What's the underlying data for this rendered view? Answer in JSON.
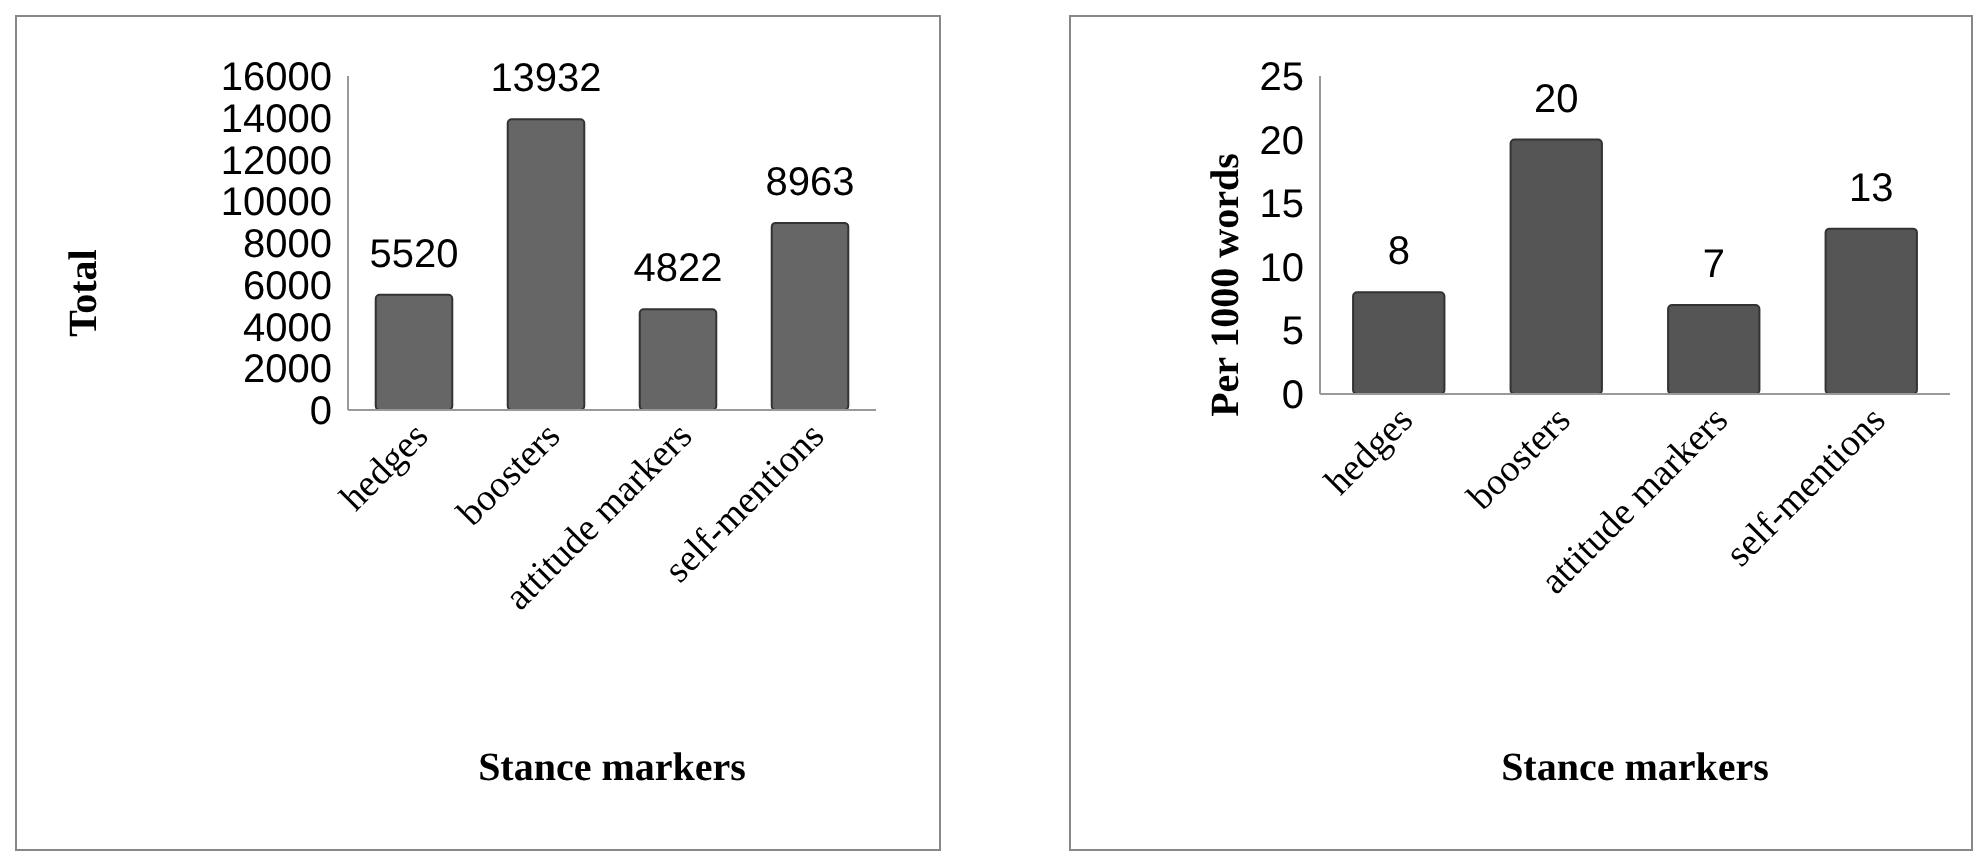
{
  "chart_data": [
    {
      "type": "bar",
      "xlabel": "Stance markers",
      "ylabel": "Total",
      "categories": [
        "hedges",
        "boosters",
        "attitude markers",
        "self-mentions"
      ],
      "values": [
        5520,
        13932,
        4822,
        8963
      ],
      "color": "#666666",
      "ylim": [
        0,
        16000
      ],
      "yticks": [
        0,
        2000,
        4000,
        6000,
        8000,
        10000,
        12000,
        14000,
        16000
      ],
      "data_labels": true,
      "grid": false
    },
    {
      "type": "bar",
      "xlabel": "Stance markers",
      "ylabel": "Per 1000 words",
      "categories": [
        "hedges",
        "boosters",
        "attitude markers",
        "self-mentions"
      ],
      "values": [
        8,
        20,
        7,
        13
      ],
      "color": "#555555",
      "ylim": [
        0,
        25
      ],
      "yticks": [
        0,
        5,
        10,
        15,
        20,
        25
      ],
      "data_labels": true,
      "grid": false
    }
  ]
}
